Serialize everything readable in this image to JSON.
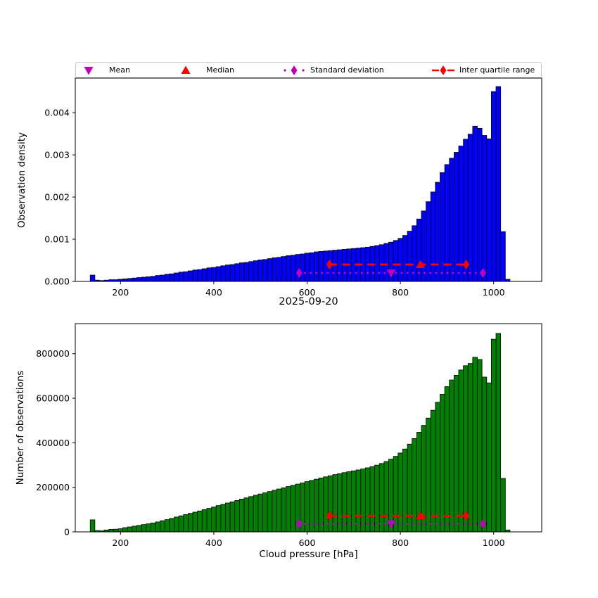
{
  "figure": {
    "title": "2025-09-20",
    "xlabel": "Cloud pressure [hPa]",
    "top_ylabel": "Observation density",
    "bottom_ylabel": "Number of observations"
  },
  "colors": {
    "blue_bars": "#0000ff",
    "green_bars": "#008000",
    "red": "#ff0000",
    "magenta": "#bf00bf",
    "bar_edge": "#000000",
    "legend_edge": "#cccccc"
  },
  "legend": {
    "items": [
      {
        "label": "Mean",
        "marker": "triangle-down",
        "color": "#bf00bf"
      },
      {
        "label": "Median",
        "marker": "triangle-up",
        "color": "#ff0000"
      },
      {
        "label": "Standard deviation",
        "marker": "diamond-dotted",
        "color": "#bf00bf"
      },
      {
        "label": "Inter quartile range",
        "marker": "diamond-dashed",
        "color": "#ff0000"
      }
    ]
  },
  "chart_data": [
    {
      "type": "bar",
      "ylabel": "Observation density",
      "bar_color": "#0000ff",
      "bin_start": 135,
      "bin_width": 10,
      "values": [
        0.00015,
        3e-05,
        2e-05,
        3e-05,
        4e-05,
        4e-05,
        5e-05,
        6e-05,
        7e-05,
        8e-05,
        9e-05,
        0.0001,
        0.00011,
        0.00012,
        0.00014,
        0.00015,
        0.00017,
        0.00018,
        0.0002,
        0.00022,
        0.00023,
        0.00025,
        0.00027,
        0.00028,
        0.0003,
        0.00032,
        0.00033,
        0.00035,
        0.00037,
        0.00039,
        0.0004,
        0.00042,
        0.00044,
        0.00045,
        0.00047,
        0.00049,
        0.00051,
        0.00052,
        0.00054,
        0.00056,
        0.00057,
        0.00059,
        0.00061,
        0.00062,
        0.00064,
        0.00065,
        0.00067,
        0.00068,
        0.0007,
        0.00071,
        0.00072,
        0.00073,
        0.00074,
        0.00075,
        0.00076,
        0.00077,
        0.00078,
        0.00079,
        0.0008,
        0.00081,
        0.00083,
        0.00085,
        0.00087,
        0.0009,
        0.00093,
        0.00097,
        0.00102,
        0.00109,
        0.00119,
        0.00132,
        0.00148,
        0.00167,
        0.00189,
        0.00212,
        0.00235,
        0.00258,
        0.00277,
        0.00292,
        0.00306,
        0.00321,
        0.00337,
        0.00349,
        0.00368,
        0.00363,
        0.00346,
        0.00338,
        0.0045,
        0.00462,
        0.00118,
        5e-05
      ],
      "xlim": [
        103,
        1103
      ],
      "ylim": [
        0,
        0.00482
      ],
      "xticks": [
        200,
        400,
        600,
        800,
        1000
      ],
      "xtick_labels": [
        "200",
        "400",
        "600",
        "800",
        "1000"
      ],
      "yticks": [
        0,
        0.001,
        0.002,
        0.003,
        0.004
      ],
      "ytick_labels": [
        "0.000",
        "0.001",
        "0.002",
        "0.003",
        "0.004"
      ],
      "grid": false,
      "stats": {
        "mean": 780,
        "median": 843,
        "std_range": [
          583,
          977
        ],
        "iqr_range": [
          648,
          941
        ],
        "std_y": 0.0002,
        "iqr_y": 0.0004
      }
    },
    {
      "type": "bar",
      "ylabel": "Number of observations",
      "bar_color": "#008000",
      "bin_start": 135,
      "bin_width": 10,
      "values": [
        54000,
        6000,
        4500,
        8500,
        11500,
        12000,
        14000,
        19000,
        22000,
        25500,
        29000,
        32500,
        36000,
        40000,
        44500,
        50000,
        55000,
        60500,
        66500,
        72000,
        77500,
        83000,
        88500,
        94000,
        100000,
        105500,
        111500,
        118000,
        123500,
        129500,
        135000,
        141000,
        147000,
        152500,
        158500,
        164500,
        170000,
        175500,
        181000,
        187000,
        192500,
        198000,
        203500,
        209000,
        214500,
        220000,
        225500,
        231000,
        236500,
        242000,
        247000,
        252000,
        257000,
        261500,
        266000,
        270000,
        274000,
        278000,
        282500,
        287500,
        293000,
        299500,
        307000,
        316000,
        326500,
        339000,
        354000,
        372000,
        394000,
        419000,
        447000,
        478000,
        511000,
        546000,
        582000,
        618000,
        652000,
        682000,
        703000,
        727000,
        746000,
        756000,
        784000,
        774000,
        695000,
        669000,
        865000,
        891000,
        240000,
        8500
      ],
      "xlim": [
        103,
        1103
      ],
      "ylim": [
        0,
        935000
      ],
      "xticks": [
        200,
        400,
        600,
        800,
        1000
      ],
      "xtick_labels": [
        "200",
        "400",
        "600",
        "800",
        "1000"
      ],
      "yticks": [
        0,
        200000,
        400000,
        600000,
        800000
      ],
      "ytick_labels": [
        "0",
        "200000",
        "400000",
        "600000",
        "800000"
      ],
      "grid": false,
      "stats": {
        "mean": 780,
        "median": 843,
        "std_range": [
          583,
          977
        ],
        "iqr_range": [
          648,
          941
        ],
        "std_y": 36000,
        "iqr_y": 72000
      }
    }
  ]
}
